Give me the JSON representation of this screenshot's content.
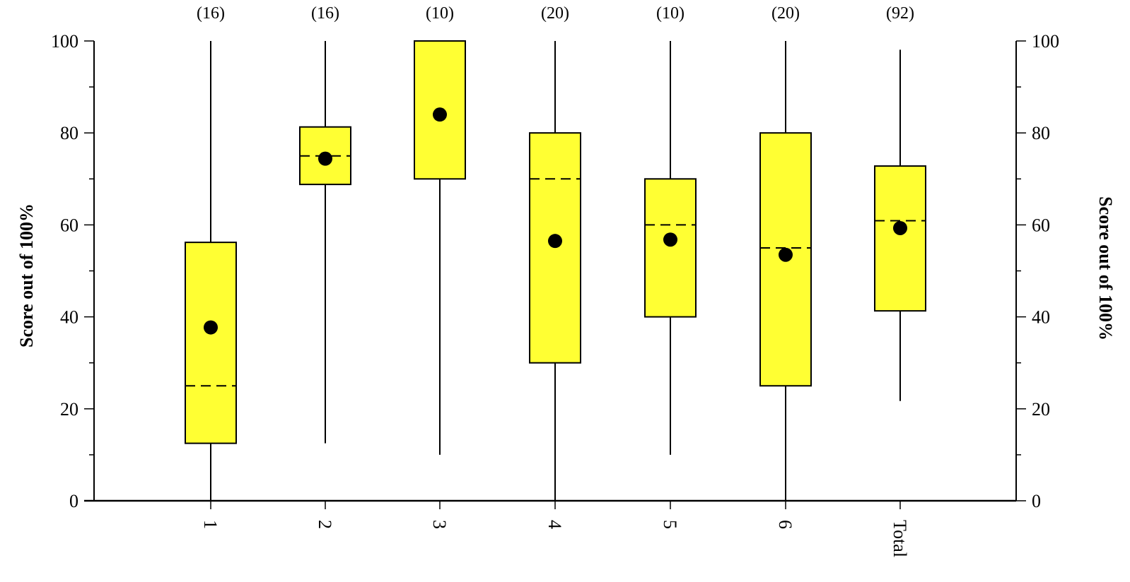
{
  "chart_data": {
    "type": "box",
    "ylabel": "Score out of 100%",
    "ylabel_right": "Score out of 100%",
    "ylim": [
      0,
      100
    ],
    "yticks": [
      0,
      20,
      40,
      60,
      80,
      100
    ],
    "categories": [
      "1",
      "2",
      "3",
      "4",
      "5",
      "6",
      "Total"
    ],
    "counts": [
      "(16)",
      "(16)",
      "(10)",
      "(20)",
      "(10)",
      "(20)",
      "(92)"
    ],
    "boxes": [
      {
        "whisker_low": 0,
        "q1": 12.5,
        "median": 25,
        "q3": 56.2,
        "whisker_high": 100,
        "mean": 37.7
      },
      {
        "whisker_low": 12.5,
        "q1": 68.8,
        "median": 75,
        "q3": 81.3,
        "whisker_high": 100,
        "mean": 74.4
      },
      {
        "whisker_low": 10,
        "q1": 70,
        "median": 100,
        "q3": 100,
        "whisker_high": 100,
        "mean": 84
      },
      {
        "whisker_low": 0,
        "q1": 30,
        "median": 70,
        "q3": 80,
        "whisker_high": 100,
        "mean": 56.5
      },
      {
        "whisker_low": 10,
        "q1": 40,
        "median": 60,
        "q3": 70,
        "whisker_high": 100,
        "mean": 56.8
      },
      {
        "whisker_low": 0,
        "q1": 25,
        "median": 55,
        "q3": 80,
        "whisker_high": 100,
        "mean": 53.5
      },
      {
        "whisker_low": 21.7,
        "q1": 41.3,
        "median": 60.9,
        "q3": 72.8,
        "whisker_high": 98.1,
        "mean": 59.3
      }
    ],
    "box_color": "#ffff33",
    "mean_marker_color": "#000000",
    "grid": false
  }
}
